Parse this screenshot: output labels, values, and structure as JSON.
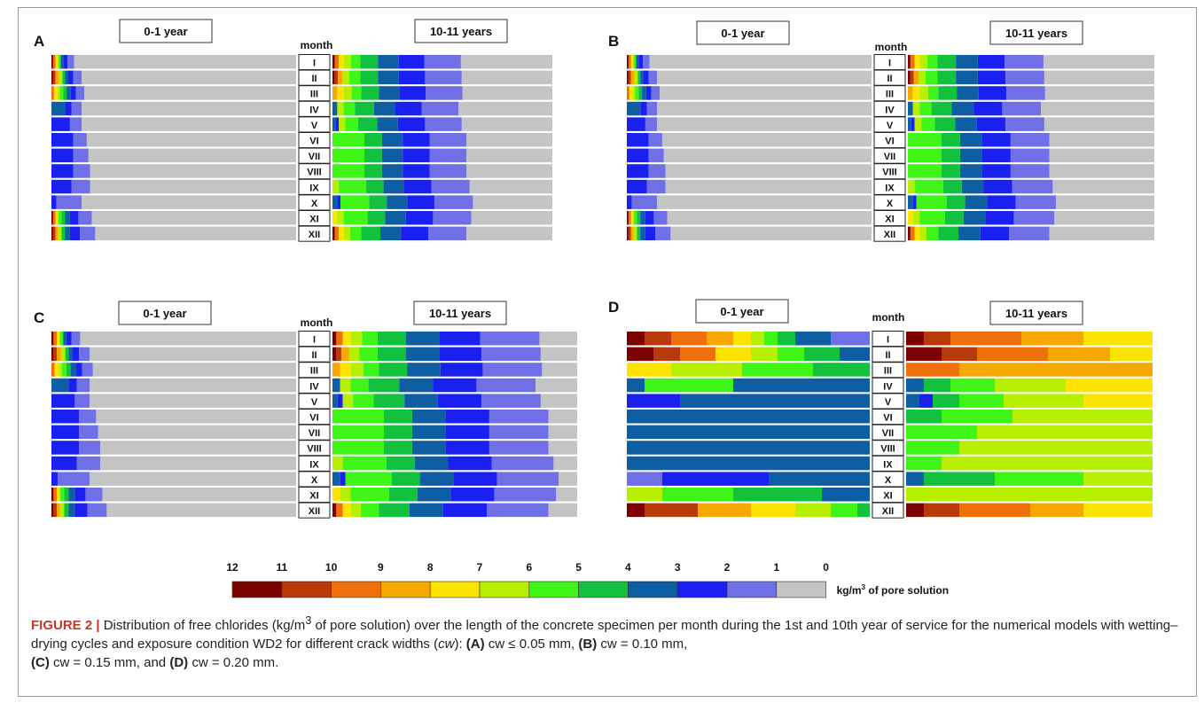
{
  "panels": [
    {
      "letter": "A",
      "left_title": "0-1 year",
      "right_title": "10-11 years",
      "month_label": "month"
    },
    {
      "letter": "B",
      "left_title": "0-1 year",
      "right_title": "10-11 years",
      "month_label": "month"
    },
    {
      "letter": "C",
      "left_title": "0-1 year",
      "right_title": "10-11 years",
      "month_label": "month"
    },
    {
      "letter": "D",
      "left_title": "0-1 year",
      "right_title": "10-11 years",
      "month_label": "month"
    }
  ],
  "months": [
    "I",
    "II",
    "III",
    "IV",
    "V",
    "VI",
    "VII",
    "VIII",
    "IX",
    "X",
    "XI",
    "XII"
  ],
  "colorbar": {
    "ticks": [
      "12",
      "11",
      "10",
      "9",
      "8",
      "7",
      "6",
      "5",
      "4",
      "3",
      "2",
      "1",
      "0"
    ],
    "colors": [
      "#7b0000",
      "#b83a0a",
      "#ef6f0a",
      "#f6a800",
      "#fce400",
      "#b6ef00",
      "#3ff518",
      "#12c23f",
      "#0d5ea3",
      "#1a20f0",
      "#6f6fe6",
      "#c4c4c4"
    ],
    "unit_label": "kg/m",
    "unit_sup": "3",
    "unit_suffix": "of pore solution"
  },
  "caption": {
    "label": "FIGURE 2 |",
    "text1": "Distribution of free chlorides (kg/m",
    "sup": "3",
    "text2": "of pore solution) over the length of the concrete specimen per month during the 1st and 10th year of service for the numerical models with wetting–drying cycles and exposure condition WD2 for different crack widths (",
    "cw": "cw",
    "text3": "):",
    "a": "(A)",
    "a_txt": "cw ≤  0.05 mm,",
    "b": "(B)",
    "b_txt": "cw = 0.10 mm,",
    "c": "(C)",
    "c_txt": "cw = 0.15 mm, and",
    "d": "(D)",
    "d_txt": "cw = 0.20 mm."
  }
}
